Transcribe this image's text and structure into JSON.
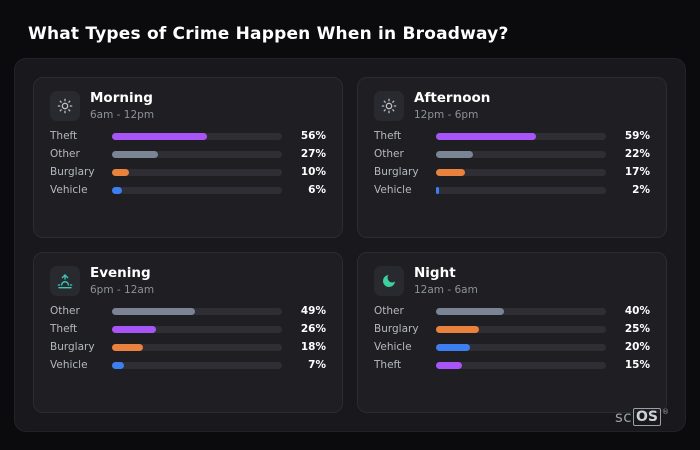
{
  "page": {
    "title": "What Types of Crime Happen When in Broadway?"
  },
  "colors": {
    "theft": "#a855f7",
    "other": "#7b8494",
    "burglary": "#e8823c",
    "vehicle": "#3d7ff0",
    "morning_icon": "#b9bec6",
    "afternoon_icon": "#b9bec6",
    "evening_icon": "#3cc9bc",
    "night_icon": "#3ecf9f"
  },
  "cards": [
    {
      "title": "Morning",
      "subtitle": "6am - 12pm",
      "icon": "sun-icon",
      "rows": [
        {
          "label": "Theft",
          "pct": "56%",
          "value": 56,
          "color": "theft"
        },
        {
          "label": "Other",
          "pct": "27%",
          "value": 27,
          "color": "other"
        },
        {
          "label": "Burglary",
          "pct": "10%",
          "value": 10,
          "color": "burglary"
        },
        {
          "label": "Vehicle",
          "pct": "6%",
          "value": 6,
          "color": "vehicle"
        }
      ]
    },
    {
      "title": "Afternoon",
      "subtitle": "12pm - 6pm",
      "icon": "sun-icon",
      "rows": [
        {
          "label": "Theft",
          "pct": "59%",
          "value": 59,
          "color": "theft"
        },
        {
          "label": "Other",
          "pct": "22%",
          "value": 22,
          "color": "other"
        },
        {
          "label": "Burglary",
          "pct": "17%",
          "value": 17,
          "color": "burglary"
        },
        {
          "label": "Vehicle",
          "pct": "2%",
          "value": 2,
          "color": "vehicle"
        }
      ]
    },
    {
      "title": "Evening",
      "subtitle": "6pm - 12am",
      "icon": "sunrise-icon",
      "rows": [
        {
          "label": "Other",
          "pct": "49%",
          "value": 49,
          "color": "other"
        },
        {
          "label": "Theft",
          "pct": "26%",
          "value": 26,
          "color": "theft"
        },
        {
          "label": "Burglary",
          "pct": "18%",
          "value": 18,
          "color": "burglary"
        },
        {
          "label": "Vehicle",
          "pct": "7%",
          "value": 7,
          "color": "vehicle"
        }
      ]
    },
    {
      "title": "Night",
      "subtitle": "12am - 6am",
      "icon": "moon-icon",
      "rows": [
        {
          "label": "Other",
          "pct": "40%",
          "value": 40,
          "color": "other"
        },
        {
          "label": "Burglary",
          "pct": "25%",
          "value": 25,
          "color": "burglary"
        },
        {
          "label": "Vehicle",
          "pct": "20%",
          "value": 20,
          "color": "vehicle"
        },
        {
          "label": "Theft",
          "pct": "15%",
          "value": 15,
          "color": "theft"
        }
      ]
    }
  ],
  "logo": {
    "prefix": "sc",
    "box": "OS",
    "reg": "®"
  },
  "chart_data": [
    {
      "type": "bar",
      "orientation": "horizontal",
      "title": "Morning",
      "subtitle": "6am - 12pm",
      "categories": [
        "Theft",
        "Other",
        "Burglary",
        "Vehicle"
      ],
      "values": [
        56,
        27,
        10,
        6
      ],
      "unit": "%",
      "xlim": [
        0,
        100
      ],
      "grid": false,
      "legend": "none"
    },
    {
      "type": "bar",
      "orientation": "horizontal",
      "title": "Afternoon",
      "subtitle": "12pm - 6pm",
      "categories": [
        "Theft",
        "Other",
        "Burglary",
        "Vehicle"
      ],
      "values": [
        59,
        22,
        17,
        2
      ],
      "unit": "%",
      "xlim": [
        0,
        100
      ],
      "grid": false,
      "legend": "none"
    },
    {
      "type": "bar",
      "orientation": "horizontal",
      "title": "Evening",
      "subtitle": "6pm - 12am",
      "categories": [
        "Other",
        "Theft",
        "Burglary",
        "Vehicle"
      ],
      "values": [
        49,
        26,
        18,
        7
      ],
      "unit": "%",
      "xlim": [
        0,
        100
      ],
      "grid": false,
      "legend": "none"
    },
    {
      "type": "bar",
      "orientation": "horizontal",
      "title": "Night",
      "subtitle": "12am - 6am",
      "categories": [
        "Other",
        "Burglary",
        "Vehicle",
        "Theft"
      ],
      "values": [
        40,
        25,
        20,
        15
      ],
      "unit": "%",
      "xlim": [
        0,
        100
      ],
      "grid": false,
      "legend": "none"
    }
  ]
}
